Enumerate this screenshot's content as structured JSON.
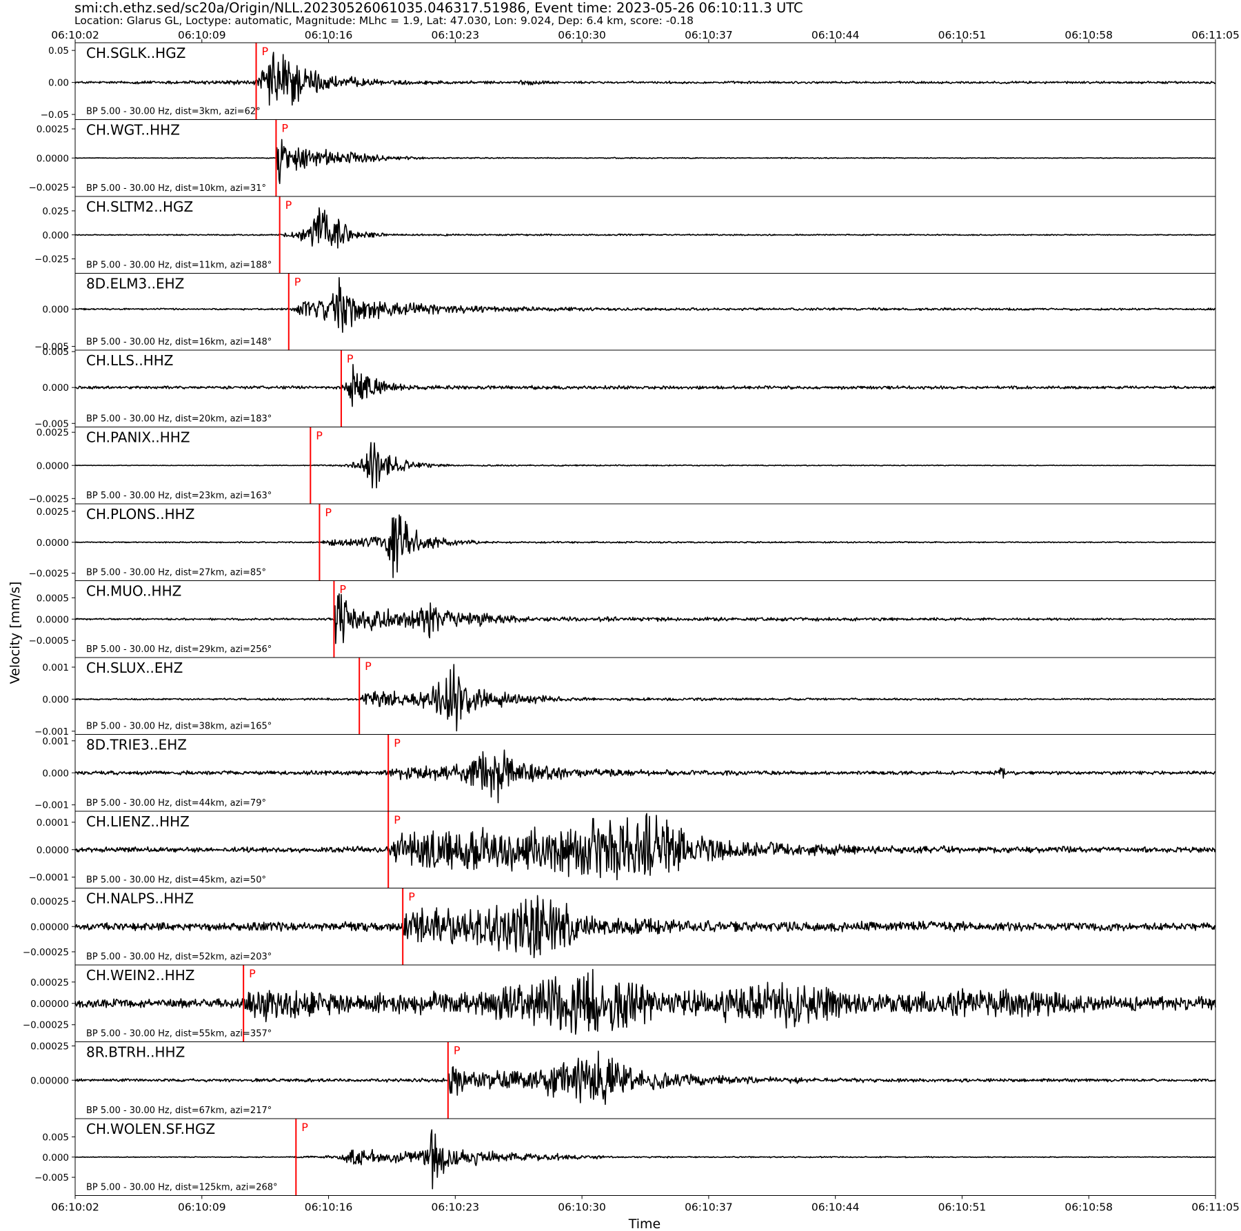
{
  "header": {
    "title": "smi:ch.ethz.sed/sc20a/Origin/NLL.20230526061035.046317.51986, Event time: 2023-05-26 06:10:11.3 UTC",
    "subtitle": "Location: Glarus GL, Loctype: automatic, Magnitude: MLhc = 1.9, Lat: 47.030, Lon: 9.024, Dep: 6.4 km, score: -0.18"
  },
  "chart_data": {
    "type": "line",
    "xlabel": "Time",
    "ylabel": "Velocity [mm/s]",
    "x_ticks": [
      "06:10:02",
      "06:10:09",
      "06:10:16",
      "06:10:23",
      "06:10:30",
      "06:10:37",
      "06:10:44",
      "06:10:51",
      "06:10:58",
      "06:11:05"
    ],
    "x_range_seconds": [
      0,
      63
    ],
    "x_origin": "06:10:02",
    "pick_color": "#ff0000",
    "trace_color": "#000000",
    "pick_label": "P",
    "traces": [
      {
        "station": "CH.SGLK..HGZ",
        "info": "BP 5.00 - 30.00 Hz, dist=3km, azi=62°",
        "ylim": [
          -0.058,
          0.062
        ],
        "ticks": [
          {
            "v": 0.05,
            "t": "0.05"
          },
          {
            "v": 0.0,
            "t": "0.00"
          },
          {
            "v": -0.05,
            "t": "−0.05"
          }
        ],
        "p": 10.0,
        "env": [
          {
            "t": 0,
            "a": 0.002
          },
          {
            "t": 10.0,
            "a": 0.004
          },
          {
            "t": 10.8,
            "a": 0.05
          },
          {
            "t": 11.6,
            "a": 0.062
          },
          {
            "t": 12.5,
            "a": 0.03
          },
          {
            "t": 14.2,
            "a": 0.012
          },
          {
            "t": 17,
            "a": 0.004
          },
          {
            "t": 24,
            "a": 0.002
          },
          {
            "t": 25.0,
            "a": 0.005
          },
          {
            "t": 26.5,
            "a": 0.002
          },
          {
            "t": 63,
            "a": 0.002
          }
        ]
      },
      {
        "station": "CH.WGT..HHZ",
        "info": "BP 5.00 - 30.00 Hz, dist=10km, azi=31°",
        "ylim": [
          -0.0033,
          0.0033
        ],
        "ticks": [
          {
            "v": 0.0025,
            "t": "0.0025"
          },
          {
            "v": 0.0,
            "t": "0.0000"
          },
          {
            "v": -0.0025,
            "t": "−0.0025"
          }
        ],
        "p": 11.1,
        "env": [
          {
            "t": 0,
            "a": 3e-05
          },
          {
            "t": 11.1,
            "a": 4e-05
          },
          {
            "t": 11.25,
            "a": 0.0033
          },
          {
            "t": 11.6,
            "a": 0.0014
          },
          {
            "t": 13,
            "a": 0.0009
          },
          {
            "t": 15,
            "a": 0.0006
          },
          {
            "t": 17,
            "a": 0.00025
          },
          {
            "t": 20,
            "a": 6e-05
          },
          {
            "t": 63,
            "a": 3e-05
          }
        ]
      },
      {
        "station": "CH.SLTM2..HGZ",
        "info": "BP 5.00 - 30.00 Hz, dist=11km, azi=188°",
        "ylim": [
          -0.04,
          0.04
        ],
        "ticks": [
          {
            "v": 0.025,
            "t": "0.025"
          },
          {
            "v": 0.0,
            "t": "0.000"
          },
          {
            "v": -0.025,
            "t": "−0.025"
          }
        ],
        "p": 11.3,
        "env": [
          {
            "t": 0,
            "a": 0.0005
          },
          {
            "t": 11.3,
            "a": 0.0008
          },
          {
            "t": 12.0,
            "a": 0.004
          },
          {
            "t": 13.0,
            "a": 0.012
          },
          {
            "t": 13.4,
            "a": 0.04
          },
          {
            "t": 14.3,
            "a": 0.02
          },
          {
            "t": 15.5,
            "a": 0.005
          },
          {
            "t": 17.5,
            "a": 0.001
          },
          {
            "t": 63,
            "a": 0.0005
          }
        ]
      },
      {
        "station": "8D.ELM3..EHZ",
        "info": "BP 5.00 - 30.00 Hz, dist=16km, azi=148°",
        "ylim": [
          -0.0055,
          0.0048
        ],
        "ticks": [
          {
            "v": 0.0,
            "t": "0.000"
          },
          {
            "v": -0.005,
            "t": "−0.005"
          }
        ],
        "p": 11.8,
        "env": [
          {
            "t": 0,
            "a": 0.0001
          },
          {
            "t": 11.8,
            "a": 0.00015
          },
          {
            "t": 12.5,
            "a": 0.001
          },
          {
            "t": 14.2,
            "a": 0.0018
          },
          {
            "t": 14.6,
            "a": 0.0048
          },
          {
            "t": 15.5,
            "a": 0.0016
          },
          {
            "t": 18.5,
            "a": 0.0009
          },
          {
            "t": 23,
            "a": 0.0004
          },
          {
            "t": 30,
            "a": 0.0002
          },
          {
            "t": 63,
            "a": 0.00015
          }
        ]
      },
      {
        "station": "CH.LLS..HHZ",
        "info": "BP 5.00 - 30.00 Hz, dist=20km, azi=183°",
        "ylim": [
          -0.0055,
          0.0052
        ],
        "ticks": [
          {
            "v": 0.005,
            "t": "0.005"
          },
          {
            "v": 0.0,
            "t": "0.000"
          },
          {
            "v": -0.005,
            "t": "−0.005"
          }
        ],
        "p": 14.7,
        "env": [
          {
            "t": 0,
            "a": 0.0002
          },
          {
            "t": 14.7,
            "a": 0.00025
          },
          {
            "t": 15.0,
            "a": 0.001
          },
          {
            "t": 15.4,
            "a": 0.0052
          },
          {
            "t": 16.2,
            "a": 0.0018
          },
          {
            "t": 17.5,
            "a": 0.0006
          },
          {
            "t": 19,
            "a": 0.0003
          },
          {
            "t": 63,
            "a": 0.0002
          }
        ]
      },
      {
        "station": "CH.PANIX..HHZ",
        "info": "BP 5.00 - 30.00 Hz, dist=23km, azi=163°",
        "ylim": [
          -0.0029,
          0.0029
        ],
        "ticks": [
          {
            "v": 0.0025,
            "t": "0.0025"
          },
          {
            "v": 0.0,
            "t": "0.0000"
          },
          {
            "v": -0.0025,
            "t": "−0.0025"
          }
        ],
        "p": 13.0,
        "env": [
          {
            "t": 0,
            "a": 2e-05
          },
          {
            "t": 13.0,
            "a": 3e-05
          },
          {
            "t": 15.0,
            "a": 0.0001
          },
          {
            "t": 16.0,
            "a": 0.0006
          },
          {
            "t": 16.4,
            "a": 0.0029
          },
          {
            "t": 17.0,
            "a": 0.0012
          },
          {
            "t": 18.5,
            "a": 0.0003
          },
          {
            "t": 21,
            "a": 6e-05
          },
          {
            "t": 63,
            "a": 2e-05
          }
        ]
      },
      {
        "station": "CH.PLONS..HHZ",
        "info": "BP 5.00 - 30.00 Hz, dist=27km, azi=85°",
        "ylim": [
          -0.0031,
          0.0031
        ],
        "ticks": [
          {
            "v": 0.0025,
            "t": "0.0025"
          },
          {
            "v": 0.0,
            "t": "0.0000"
          },
          {
            "v": -0.0025,
            "t": "−0.0025"
          }
        ],
        "p": 13.5,
        "env": [
          {
            "t": 0,
            "a": 4e-05
          },
          {
            "t": 13.5,
            "a": 6e-05
          },
          {
            "t": 14.2,
            "a": 0.0003
          },
          {
            "t": 17.0,
            "a": 0.0005
          },
          {
            "t": 17.5,
            "a": 0.0031
          },
          {
            "t": 18.6,
            "a": 0.0012
          },
          {
            "t": 20.5,
            "a": 0.0003
          },
          {
            "t": 23,
            "a": 8e-05
          },
          {
            "t": 63,
            "a": 4e-05
          }
        ]
      },
      {
        "station": "CH.MUO..HHZ",
        "info": "BP 5.00 - 30.00 Hz, dist=29km, azi=256°",
        "ylim": [
          -0.0009,
          0.0009
        ],
        "ticks": [
          {
            "v": 0.0005,
            "t": "0.0005"
          },
          {
            "v": 0.0,
            "t": "0.0000"
          },
          {
            "v": -0.0005,
            "t": "−0.0005"
          }
        ],
        "p": 14.3,
        "env": [
          {
            "t": 0,
            "a": 2e-05
          },
          {
            "t": 14.3,
            "a": 3e-05
          },
          {
            "t": 14.4,
            "a": 0.0009
          },
          {
            "t": 15.3,
            "a": 0.0003
          },
          {
            "t": 18.5,
            "a": 0.00025
          },
          {
            "t": 19.5,
            "a": 0.0005
          },
          {
            "t": 21.5,
            "a": 0.0002
          },
          {
            "t": 25,
            "a": 6e-05
          },
          {
            "t": 63,
            "a": 2e-05
          }
        ]
      },
      {
        "station": "CH.SLUX..EHZ",
        "info": "BP 5.00 - 30.00 Hz, dist=38km, azi=165°",
        "ylim": [
          -0.0011,
          0.0013
        ],
        "ticks": [
          {
            "v": 0.001,
            "t": "0.001"
          },
          {
            "v": 0.0,
            "t": "0.000"
          },
          {
            "v": -0.001,
            "t": "−0.001"
          }
        ],
        "p": 15.7,
        "env": [
          {
            "t": 0,
            "a": 2e-05
          },
          {
            "t": 15.7,
            "a": 4e-05
          },
          {
            "t": 16.0,
            "a": 0.00025
          },
          {
            "t": 19.5,
            "a": 0.0003
          },
          {
            "t": 20.7,
            "a": 0.0013
          },
          {
            "t": 22,
            "a": 0.0004
          },
          {
            "t": 25,
            "a": 0.00015
          },
          {
            "t": 28,
            "a": 5e-05
          },
          {
            "t": 63,
            "a": 2e-05
          }
        ]
      },
      {
        "station": "8D.TRIE3..EHZ",
        "info": "BP 5.00 - 30.00 Hz, dist=44km, azi=79°",
        "ylim": [
          -0.0012,
          0.0012
        ],
        "ticks": [
          {
            "v": 0.001,
            "t": "0.001"
          },
          {
            "v": 0.0,
            "t": "0.000"
          },
          {
            "v": -0.001,
            "t": "−0.001"
          }
        ],
        "p": 17.3,
        "env": [
          {
            "t": 0,
            "a": 6e-05
          },
          {
            "t": 17.3,
            "a": 8e-05
          },
          {
            "t": 17.6,
            "a": 0.0002
          },
          {
            "t": 21.5,
            "a": 0.0003
          },
          {
            "t": 23.2,
            "a": 0.0012
          },
          {
            "t": 24.5,
            "a": 0.0004
          },
          {
            "t": 28,
            "a": 0.00015
          },
          {
            "t": 33,
            "a": 0.0001
          },
          {
            "t": 40,
            "a": 6e-05
          },
          {
            "t": 51.0,
            "a": 6e-05
          },
          {
            "t": 51.2,
            "a": 0.0004
          },
          {
            "t": 51.4,
            "a": 6e-05
          },
          {
            "t": 63,
            "a": 6e-05
          }
        ]
      },
      {
        "station": "CH.LIENZ..HHZ",
        "info": "BP 5.00 - 30.00 Hz, dist=45km, azi=50°",
        "ylim": [
          -0.00014,
          0.00014
        ],
        "ticks": [
          {
            "v": 0.0001,
            "t": "0.0001"
          },
          {
            "v": 0.0,
            "t": "0.0000"
          },
          {
            "v": -0.0001,
            "t": "−0.0001"
          }
        ],
        "p": 17.3,
        "env": [
          {
            "t": 0,
            "a": 1e-05
          },
          {
            "t": 17.3,
            "a": 1.2e-05
          },
          {
            "t": 17.6,
            "a": 6e-05
          },
          {
            "t": 20,
            "a": 8e-05
          },
          {
            "t": 24,
            "a": 9e-05
          },
          {
            "t": 31.6,
            "a": 0.00014
          },
          {
            "t": 34,
            "a": 7e-05
          },
          {
            "t": 38,
            "a": 3e-05
          },
          {
            "t": 45,
            "a": 1.5e-05
          },
          {
            "t": 63,
            "a": 1e-05
          }
        ]
      },
      {
        "station": "CH.NALPS..HHZ",
        "info": "BP 5.00 - 30.00 Hz, dist=52km, azi=203°",
        "ylim": [
          -0.00038,
          0.00038
        ],
        "ticks": [
          {
            "v": 0.00025,
            "t": "0.00025"
          },
          {
            "v": 0.0,
            "t": "0.00000"
          },
          {
            "v": -0.00025,
            "t": "−0.00025"
          }
        ],
        "p": 18.1,
        "env": [
          {
            "t": 0,
            "a": 4e-05
          },
          {
            "t": 18.1,
            "a": 5e-05
          },
          {
            "t": 18.4,
            "a": 0.0002
          },
          {
            "t": 22,
            "a": 0.00022
          },
          {
            "t": 25.8,
            "a": 0.00038
          },
          {
            "t": 28,
            "a": 0.00012
          },
          {
            "t": 34,
            "a": 6e-05
          },
          {
            "t": 63,
            "a": 4e-05
          }
        ]
      },
      {
        "station": "CH.WEIN2..HHZ",
        "info": "BP 5.00 - 30.00 Hz, dist=55km, azi=357°",
        "ylim": [
          -0.00045,
          0.00045
        ],
        "ticks": [
          {
            "v": 0.00025,
            "t": "0.00025"
          },
          {
            "v": 0.0,
            "t": "0.00000"
          },
          {
            "v": -0.00025,
            "t": "−0.00025"
          }
        ],
        "p": 9.3,
        "env": [
          {
            "t": 0,
            "a": 5e-05
          },
          {
            "t": 9.3,
            "a": 6e-05
          },
          {
            "t": 9.5,
            "a": 0.00025
          },
          {
            "t": 15,
            "a": 0.00012
          },
          {
            "t": 22,
            "a": 0.00015
          },
          {
            "t": 28.5,
            "a": 0.00045
          },
          {
            "t": 33,
            "a": 0.00015
          },
          {
            "t": 39,
            "a": 0.0003
          },
          {
            "t": 44,
            "a": 0.0001
          },
          {
            "t": 51.3,
            "a": 0.00022
          },
          {
            "t": 56,
            "a": 0.0001
          },
          {
            "t": 63,
            "a": 8e-05
          }
        ]
      },
      {
        "station": "8R.BTRH..HHZ",
        "info": "BP 5.00 - 30.00 Hz, dist=67km, azi=217°",
        "ylim": [
          -0.00028,
          0.00028
        ],
        "ticks": [
          {
            "v": 0.00025,
            "t": "0.00025"
          },
          {
            "v": 0.0,
            "t": "0.00000"
          }
        ],
        "p": 20.6,
        "env": [
          {
            "t": 0,
            "a": 1e-05
          },
          {
            "t": 20.6,
            "a": 1.5e-05
          },
          {
            "t": 20.7,
            "a": 0.0002
          },
          {
            "t": 21.6,
            "a": 6e-05
          },
          {
            "t": 25,
            "a": 8e-05
          },
          {
            "t": 29.3,
            "a": 0.00022
          },
          {
            "t": 31,
            "a": 8e-05
          },
          {
            "t": 36,
            "a": 3e-05
          },
          {
            "t": 45,
            "a": 1.5e-05
          },
          {
            "t": 63,
            "a": 1e-05
          }
        ]
      },
      {
        "station": "CH.WOLEN.SF.HGZ",
        "info": "BP 5.00 - 30.00 Hz, dist=125km, azi=268°",
        "ylim": [
          -0.0095,
          0.0095
        ],
        "ticks": [
          {
            "v": 0.005,
            "t": "0.005"
          },
          {
            "v": 0.0,
            "t": "0.000"
          },
          {
            "v": -0.005,
            "t": "−0.005"
          }
        ],
        "p": 12.2,
        "env": [
          {
            "t": 0,
            "a": 0.0001
          },
          {
            "t": 12.2,
            "a": 0.00015
          },
          {
            "t": 14.5,
            "a": 0.0005
          },
          {
            "t": 15.5,
            "a": 0.0025
          },
          {
            "t": 16.8,
            "a": 0.0015
          },
          {
            "t": 19.5,
            "a": 0.002
          },
          {
            "t": 19.7,
            "a": 0.0095
          },
          {
            "t": 20.6,
            "a": 0.003
          },
          {
            "t": 21.9,
            "a": 0.0025
          },
          {
            "t": 24,
            "a": 0.0012
          },
          {
            "t": 27.5,
            "a": 0.0008
          },
          {
            "t": 30,
            "a": 0.0002
          },
          {
            "t": 63,
            "a": 0.0001
          }
        ]
      }
    ]
  }
}
